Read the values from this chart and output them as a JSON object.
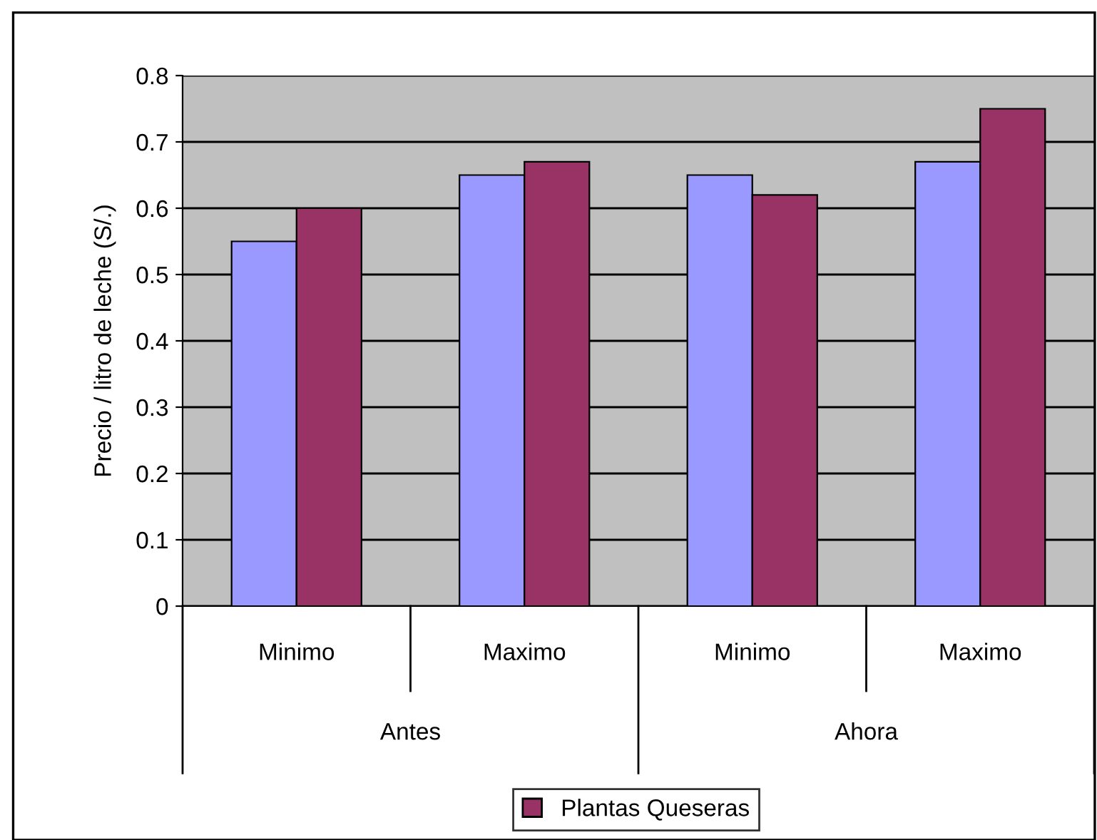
{
  "chart_data": {
    "type": "bar",
    "ylabel": "Precio / litro de leche (S/.)",
    "categories": [
      "Minimo",
      "Maximo",
      "Minimo",
      "Maximo"
    ],
    "annotations": [
      "Antes",
      "Ahora"
    ],
    "series": [
      {
        "color": "#9999ff",
        "values": [
          0.55,
          0.65,
          0.65,
          0.67
        ]
      },
      {
        "name": "Plantas Queseras",
        "color": "#993366",
        "values": [
          0.6,
          0.67,
          0.62,
          0.75
        ]
      }
    ],
    "ylim": [
      0,
      0.8
    ],
    "yticks": [
      0,
      0.1,
      0.2,
      0.3,
      0.4,
      0.5,
      0.6,
      0.7,
      0.8
    ],
    "grid": "y",
    "legend": "bottom"
  }
}
